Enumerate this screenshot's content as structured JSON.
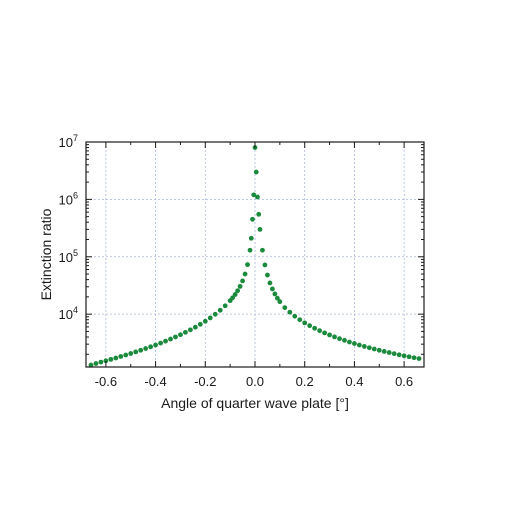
{
  "chart_data": {
    "type": "scatter",
    "title": "",
    "xlabel": "Angle of quarter wave plate [°]",
    "ylabel": "Extinction ratio",
    "xlim": [
      -0.68,
      0.68
    ],
    "ylim": [
      1200,
      10000000
    ],
    "y_scale": "log",
    "grid": true,
    "legend": "none",
    "marker_color": "#1a8a3c",
    "grid_color": "#a9b8d8",
    "x_ticks": [
      -0.6,
      -0.4,
      -0.2,
      0.0,
      0.2,
      0.4,
      0.6
    ],
    "x_tick_labels": [
      "-0.6",
      "-0.4",
      "-0.2",
      "0.0",
      "0.2",
      "0.4",
      "0.6"
    ],
    "y_ticks": [
      {
        "value": 10000,
        "base": "10",
        "exp": "4"
      },
      {
        "value": 100000,
        "base": "10",
        "exp": "5"
      },
      {
        "value": 1000000,
        "base": "10",
        "exp": "6"
      },
      {
        "value": 10000000,
        "base": "10",
        "exp": "7"
      }
    ],
    "series": [
      {
        "points": [
          [
            -0.66,
            1300
          ],
          [
            -0.64,
            1380
          ],
          [
            -0.62,
            1460
          ],
          [
            -0.6,
            1540
          ],
          [
            -0.58,
            1630
          ],
          [
            -0.56,
            1720
          ],
          [
            -0.54,
            1830
          ],
          [
            -0.52,
            1940
          ],
          [
            -0.5,
            2060
          ],
          [
            -0.48,
            2200
          ],
          [
            -0.46,
            2350
          ],
          [
            -0.44,
            2520
          ],
          [
            -0.42,
            2700
          ],
          [
            -0.4,
            2900
          ],
          [
            -0.38,
            3130
          ],
          [
            -0.36,
            3390
          ],
          [
            -0.34,
            3680
          ],
          [
            -0.32,
            4000
          ],
          [
            -0.3,
            4380
          ],
          [
            -0.28,
            4820
          ],
          [
            -0.26,
            5330
          ],
          [
            -0.24,
            5930
          ],
          [
            -0.22,
            6650
          ],
          [
            -0.2,
            7520
          ],
          [
            -0.18,
            8600
          ],
          [
            -0.16,
            9950
          ],
          [
            -0.14,
            11700
          ],
          [
            -0.12,
            14000
          ],
          [
            -0.1,
            17200
          ],
          [
            -0.09,
            19300
          ],
          [
            -0.08,
            22000
          ],
          [
            -0.07,
            25500
          ],
          [
            -0.06,
            30500
          ],
          [
            -0.05,
            38000
          ],
          [
            -0.04,
            50000
          ],
          [
            -0.03,
            73000
          ],
          [
            -0.02,
            130000
          ],
          [
            -0.015,
            210000
          ],
          [
            -0.01,
            450000
          ],
          [
            -0.005,
            1200000
          ],
          [
            0.0,
            8000000
          ],
          [
            0.005,
            3000000
          ],
          [
            0.01,
            1100000
          ],
          [
            0.015,
            550000
          ],
          [
            0.02,
            300000
          ],
          [
            0.03,
            130000
          ],
          [
            0.04,
            72000
          ],
          [
            0.05,
            48000
          ],
          [
            0.06,
            35000
          ],
          [
            0.07,
            27500
          ],
          [
            0.08,
            22500
          ],
          [
            0.09,
            19000
          ],
          [
            0.1,
            16500
          ],
          [
            0.12,
            13000
          ],
          [
            0.14,
            10800
          ],
          [
            0.16,
            9200
          ],
          [
            0.18,
            8000
          ],
          [
            0.2,
            7050
          ],
          [
            0.22,
            6300
          ],
          [
            0.24,
            5680
          ],
          [
            0.26,
            5160
          ],
          [
            0.28,
            4720
          ],
          [
            0.3,
            4340
          ],
          [
            0.32,
            4020
          ],
          [
            0.34,
            3740
          ],
          [
            0.36,
            3500
          ],
          [
            0.38,
            3270
          ],
          [
            0.4,
            3080
          ],
          [
            0.42,
            2900
          ],
          [
            0.44,
            2740
          ],
          [
            0.46,
            2600
          ],
          [
            0.48,
            2470
          ],
          [
            0.5,
            2350
          ],
          [
            0.52,
            2240
          ],
          [
            0.54,
            2140
          ],
          [
            0.56,
            2050
          ],
          [
            0.58,
            1960
          ],
          [
            0.6,
            1880
          ],
          [
            0.62,
            1810
          ],
          [
            0.64,
            1740
          ],
          [
            0.66,
            1680
          ]
        ]
      }
    ]
  }
}
